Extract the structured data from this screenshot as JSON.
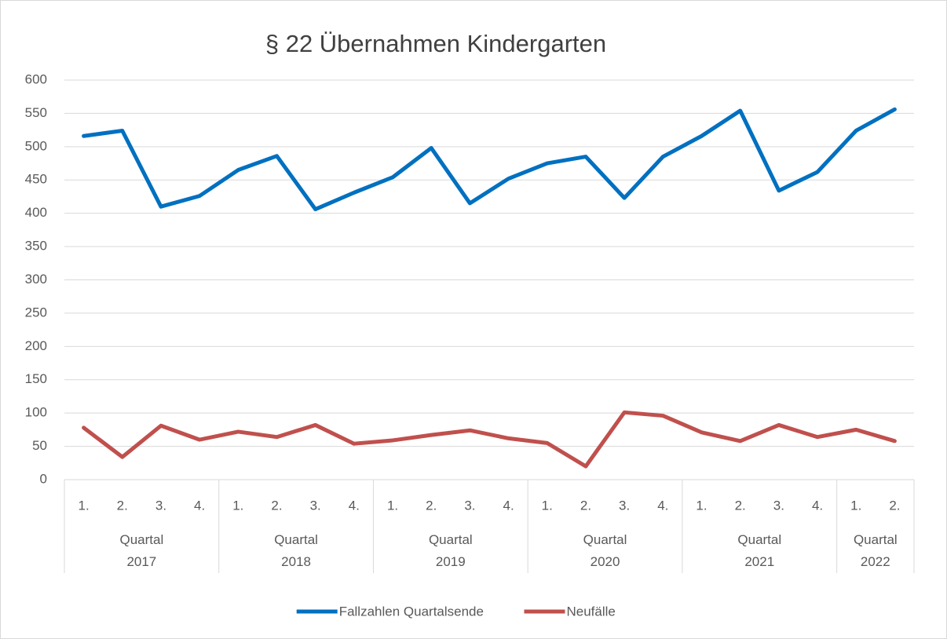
{
  "chart_data": {
    "type": "line",
    "title": "§ 22 Übernahmen Kindergarten",
    "categories": [
      "1.",
      "2.",
      "3.",
      "4.",
      "1.",
      "2.",
      "3.",
      "4.",
      "1.",
      "2.",
      "3.",
      "4.",
      "1.",
      "2.",
      "3.",
      "4.",
      "1.",
      "2.",
      "3.",
      "4.",
      "1.",
      "2."
    ],
    "groups": [
      {
        "name": "Quartal 2017",
        "size": 4
      },
      {
        "name": "Quartal 2018",
        "size": 4
      },
      {
        "name": "Quartal 2019",
        "size": 4
      },
      {
        "name": "Quartal 2020",
        "size": 4
      },
      {
        "name": "Quartal 2021",
        "size": 4
      },
      {
        "name": "Quartal 2022",
        "size": 2
      }
    ],
    "series": [
      {
        "name": "Fallzahlen Quartalsende",
        "color": "#0070c0",
        "values": [
          516,
          524,
          410,
          426,
          465,
          486,
          406,
          431,
          454,
          498,
          415,
          452,
          475,
          485,
          423,
          485,
          516,
          554,
          434,
          462,
          524,
          556
        ]
      },
      {
        "name": "Neufälle",
        "color": "#c0504d",
        "values": [
          78,
          34,
          81,
          60,
          72,
          64,
          82,
          54,
          59,
          67,
          74,
          62,
          55,
          20,
          101,
          96,
          71,
          58,
          82,
          64,
          75,
          58
        ]
      }
    ],
    "ylim": [
      0,
      600
    ],
    "yticks": [
      0,
      50,
      100,
      150,
      200,
      250,
      300,
      350,
      400,
      450,
      500,
      550,
      600
    ],
    "grid": true,
    "legend": "bottom"
  }
}
